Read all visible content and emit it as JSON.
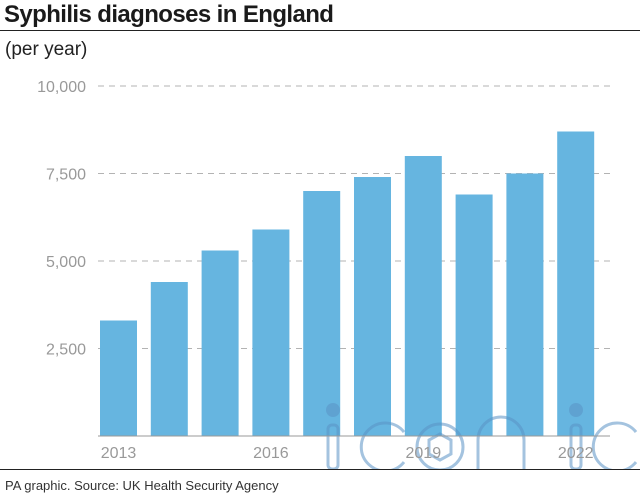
{
  "title": "Syphilis diagnoses in England",
  "subtitle": "(per year)",
  "source": "PA graphic. Source: UK Health Security Agency",
  "watermark": "iconic",
  "colors": {
    "bar": "#66b5e0",
    "grid": "#b3b3b3",
    "axis": "#999999",
    "tick_text": "#999999",
    "watermark": "#5a93c6"
  },
  "chart_data": {
    "type": "bar",
    "title": "Syphilis diagnoses in England",
    "subtitle": "(per year)",
    "xlabel": "",
    "ylabel": "",
    "categories": [
      "2013",
      "2014",
      "2015",
      "2016",
      "2017",
      "2018",
      "2019",
      "2020",
      "2021",
      "2022"
    ],
    "values": [
      3300,
      4400,
      5300,
      5900,
      7000,
      7400,
      8000,
      6900,
      7500,
      8700
    ],
    "x_tick_labels": [
      "2013",
      "",
      "",
      "2016",
      "",
      "",
      "2019",
      "",
      "",
      "2022"
    ],
    "y_tick_labels": [
      "2,500",
      "5,000",
      "7,500",
      "10,000"
    ],
    "y_ticks": [
      2500,
      5000,
      7500,
      10000
    ],
    "ylim": [
      0,
      10000
    ],
    "grid": true
  }
}
